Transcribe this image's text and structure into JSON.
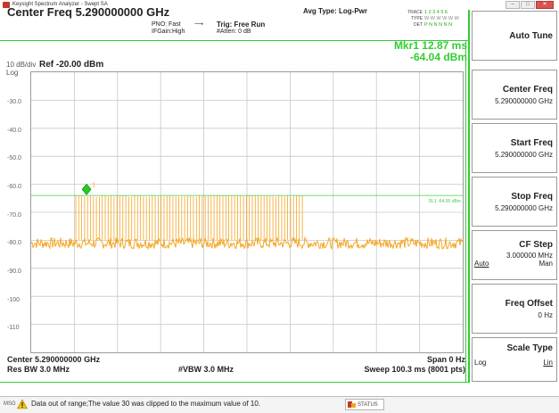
{
  "window": {
    "title": "Keysight Spectrum Analyzer - Swept SA",
    "minimize_label": "–",
    "maximize_label": "□",
    "close_label": "✕"
  },
  "header": {
    "center_freq_title": "Center Freq 5.290000000 GHz",
    "pno": "PNO: Fast",
    "pno_arrow": "⟶",
    "ifgain": "IFGain:High",
    "trig": "Trig: Free Run",
    "atten": "#Atten: 0 dB",
    "avg_type": "Avg Type: Log-Pwr",
    "trace_labels": [
      "TRACE",
      "TYPE",
      "DET"
    ],
    "trace_values": [
      "1 2 3 4 5 6",
      "W W W W W W",
      "P N N N N N"
    ]
  },
  "marker": {
    "line1": "Mkr1 12.87 ms",
    "line2": "-64.04 dBm",
    "label": "1",
    "display_line_label": "DL1 -64.00 dBm"
  },
  "scale": {
    "per_div": "10 dB/div",
    "mode": "Log",
    "ref_level": "Ref -20.00 dBm",
    "y_ticks": [
      "-30.0",
      "-40.0",
      "-50.0",
      "-60.0",
      "-70.0",
      "-80.0",
      "-90.0",
      "-100",
      "-110"
    ]
  },
  "footer": {
    "center": "Center 5.290000000 GHz",
    "span": "Span 0 Hz",
    "res_bw": "Res BW 3.0 MHz",
    "vbw": "#VBW 3.0 MHz",
    "sweep": "Sweep  100.3 ms (8001 pts)"
  },
  "softkeys": [
    {
      "title": "Auto Tune",
      "value": ""
    },
    {
      "title": "Center Freq",
      "value": "5.290000000 GHz"
    },
    {
      "title": "Start Freq",
      "value": "5.290000000 GHz"
    },
    {
      "title": "Stop Freq",
      "value": "5.290000000 GHz"
    },
    {
      "title": "CF Step",
      "value": "3.000000 MHz",
      "left_opt": "Auto",
      "right_opt": "Man"
    },
    {
      "title": "Freq Offset",
      "value": "0 Hz"
    },
    {
      "title": "Scale Type",
      "left_opt": "Log",
      "right_opt": "Lin"
    }
  ],
  "status": {
    "msg_label": "MSG",
    "message": "Data out of range;The value 30 was clipped to the maximum value of 10.",
    "status_button": "STATUS"
  },
  "colors": {
    "trace": "#f5a623",
    "marker": "#22cc22",
    "display_line": "#44cc44",
    "frame_green": "#33cc33"
  }
}
